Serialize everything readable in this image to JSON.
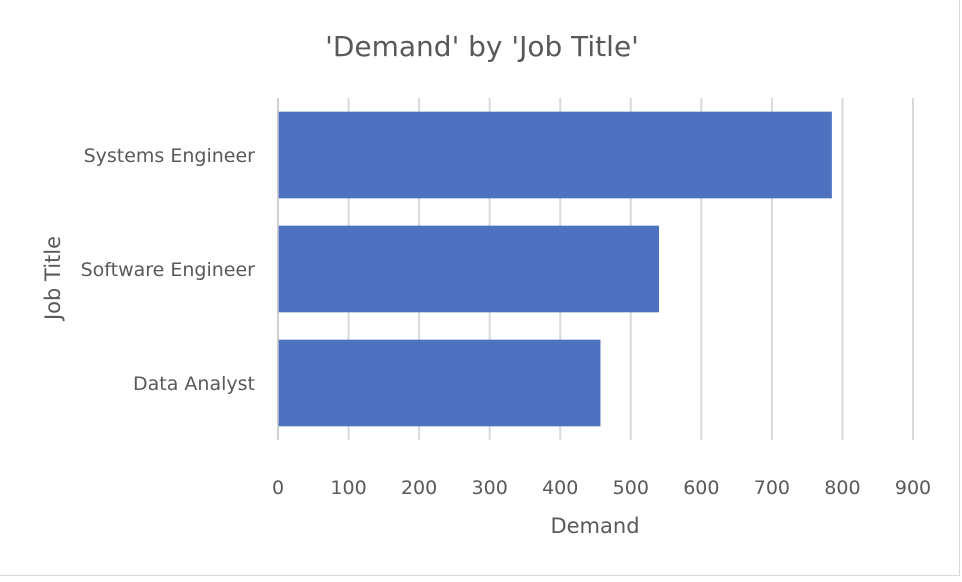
{
  "chart_data": {
    "type": "bar",
    "orientation": "horizontal",
    "title": "'Demand' by 'Job Title'",
    "xlabel": "Demand",
    "ylabel": "Job Title",
    "categories": [
      "Systems Engineer",
      "Software Engineer",
      "Data Analyst"
    ],
    "values": [
      785,
      540,
      457
    ],
    "xlim": [
      0,
      900
    ],
    "xticks": [
      0,
      100,
      200,
      300,
      400,
      500,
      600,
      700,
      800,
      900
    ],
    "grid": "vertical",
    "legend": "none",
    "bar_color": "#4e72c0"
  }
}
